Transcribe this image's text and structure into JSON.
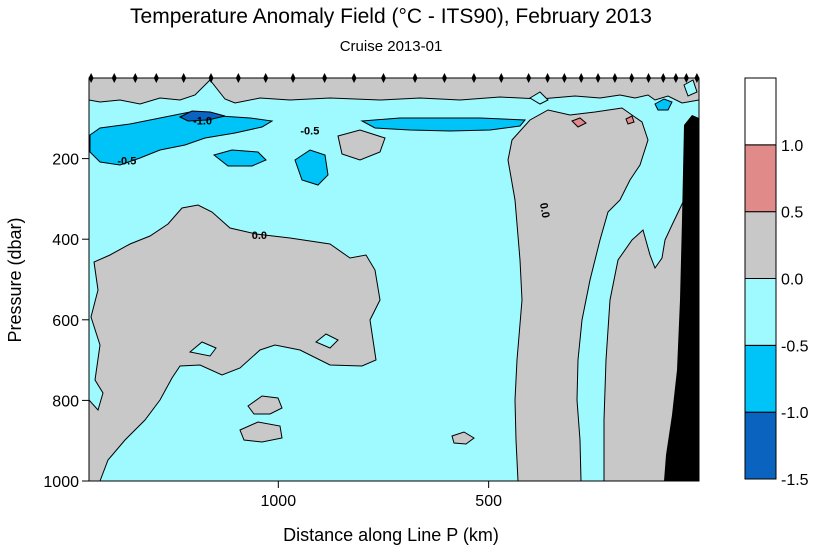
{
  "chart_data": {
    "type": "heatmap",
    "title": "Temperature Anomaly Field  (°C - ITS90),  February 2013",
    "subtitle": "Cruise 2013-01",
    "xlabel": "Distance along Line P  (km)",
    "ylabel": "Pressure  (dbar)",
    "x_reversed": true,
    "y_reversed": true,
    "xlim": [
      1450,
      0
    ],
    "ylim": [
      1000,
      10
    ],
    "x_ticks": [
      {
        "value": 1000,
        "label": "1000"
      },
      {
        "value": 500,
        "label": "500"
      }
    ],
    "y_ticks": [
      {
        "value": 200,
        "label": "200"
      },
      {
        "value": 400,
        "label": "400"
      },
      {
        "value": 600,
        "label": "600"
      },
      {
        "value": 800,
        "label": "800"
      },
      {
        "value": 1000,
        "label": "1000"
      }
    ],
    "colorbar": {
      "levels": [
        {
          "from": -1.5,
          "to": -1.0,
          "color": "#0a63be"
        },
        {
          "from": -1.0,
          "to": -0.5,
          "color": "#00c4f8"
        },
        {
          "from": -0.5,
          "to": 0.0,
          "color": "#9ffaff"
        },
        {
          "from": 0.0,
          "to": 0.5,
          "color": "#c8c8c8"
        },
        {
          "from": 0.5,
          "to": 1.0,
          "color": "#e08a8a"
        },
        {
          "from": 1.0,
          "to": 1.5,
          "color": "#ffffff"
        }
      ],
      "tick_labels": [
        "1.0",
        "0.5",
        "0.0",
        "-0.5",
        "-1.0",
        "-1.5"
      ],
      "tick_values": [
        1.0,
        0.5,
        0.0,
        -0.5,
        -1.0,
        -1.5
      ]
    },
    "contour_labels": [
      {
        "text": "-1.0",
        "x": 1180,
        "y": 115
      },
      {
        "text": "-0.5",
        "x": 1360,
        "y": 215
      },
      {
        "text": "-0.5",
        "x": 925,
        "y": 140
      },
      {
        "text": "0.0",
        "x": 1045,
        "y": 400
      },
      {
        "text": "0.0",
        "x": 375,
        "y": 330
      }
    ],
    "stations_km": [
      1445,
      1390,
      1340,
      1290,
      1225,
      1160,
      1095,
      1030,
      965,
      890,
      820,
      750,
      675,
      605,
      535,
      470,
      405,
      360,
      320,
      280,
      240,
      200,
      160,
      120,
      85,
      55,
      30,
      5
    ]
  }
}
